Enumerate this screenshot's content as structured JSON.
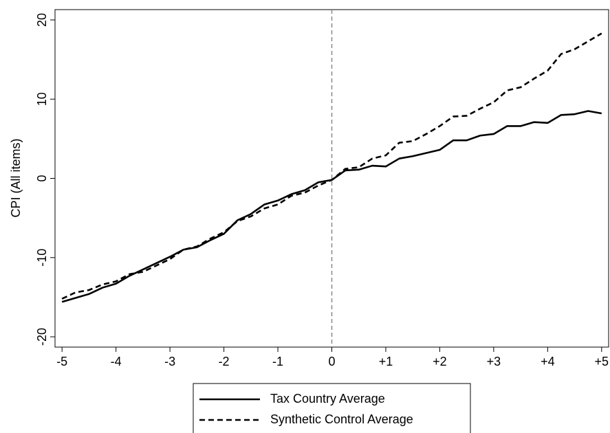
{
  "chart_data": {
    "type": "line",
    "ylabel": "CPI (All items)",
    "x": [
      -5,
      -4.75,
      -4.5,
      -4.25,
      -4,
      -3.75,
      -3.5,
      -3.25,
      -3,
      -2.75,
      -2.5,
      -2.25,
      -2,
      -1.75,
      -1.5,
      -1.25,
      -1,
      -0.75,
      -0.5,
      -0.25,
      0,
      0.25,
      0.5,
      0.75,
      1,
      1.25,
      1.5,
      1.75,
      2,
      2.25,
      2.5,
      2.75,
      3,
      3.25,
      3.5,
      3.75,
      4,
      4.25,
      4.5,
      4.75,
      5
    ],
    "series": [
      {
        "name": "Tax Country Average",
        "color": "#000000",
        "dash": "solid",
        "values": [
          -15.6,
          -15.1,
          -14.6,
          -13.8,
          -13.3,
          -12.3,
          -11.5,
          -10.7,
          -9.9,
          -9.0,
          -8.7,
          -7.8,
          -7.0,
          -5.3,
          -4.5,
          -3.3,
          -2.8,
          -2.0,
          -1.5,
          -0.5,
          -0.2,
          1.0,
          1.1,
          1.6,
          1.5,
          2.5,
          2.8,
          3.2,
          3.6,
          4.8,
          4.8,
          5.4,
          5.6,
          6.6,
          6.6,
          7.1,
          7.0,
          8.0,
          8.1,
          8.5,
          8.2
        ]
      },
      {
        "name": "Synthetic Control Average",
        "color": "#000000",
        "dash": "dashed",
        "values": [
          -15.2,
          -14.4,
          -14.1,
          -13.4,
          -13.0,
          -12.1,
          -11.8,
          -11.0,
          -10.2,
          -9.0,
          -8.6,
          -7.6,
          -6.8,
          -5.4,
          -4.8,
          -3.8,
          -3.3,
          -2.2,
          -1.8,
          -0.9,
          -0.2,
          1.2,
          1.4,
          2.5,
          2.9,
          4.5,
          4.7,
          5.6,
          6.6,
          7.8,
          7.9,
          8.8,
          9.6,
          11.1,
          11.5,
          12.6,
          13.6,
          15.7,
          16.3,
          17.3,
          18.3
        ]
      }
    ],
    "xlim": [
      -5.13,
      5.13
    ],
    "xticks": [
      -5,
      -4,
      -3,
      -2,
      -1,
      0,
      {
        "value": 1,
        "label": "+1"
      },
      {
        "value": 2,
        "label": "+2"
      },
      {
        "value": 3,
        "label": "+3"
      },
      {
        "value": 4,
        "label": "+4"
      },
      {
        "value": 5,
        "label": "+5"
      }
    ],
    "ylim": [
      -21.3,
      21.3
    ],
    "yticks": [
      -20,
      -10,
      0,
      10,
      20
    ],
    "vline": 0,
    "grid": false,
    "legend": "bottom"
  }
}
